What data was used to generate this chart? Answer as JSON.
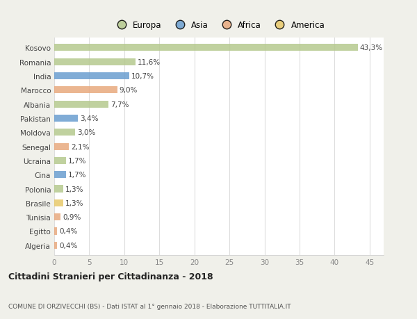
{
  "countries": [
    "Kosovo",
    "Romania",
    "India",
    "Marocco",
    "Albania",
    "Pakistan",
    "Moldova",
    "Senegal",
    "Ucraina",
    "Cina",
    "Polonia",
    "Brasile",
    "Tunisia",
    "Egitto",
    "Algeria"
  ],
  "values": [
    43.3,
    11.6,
    10.7,
    9.0,
    7.7,
    3.4,
    3.0,
    2.1,
    1.7,
    1.7,
    1.3,
    1.3,
    0.9,
    0.4,
    0.4
  ],
  "labels": [
    "43,3%",
    "11,6%",
    "10,7%",
    "9,0%",
    "7,7%",
    "3,4%",
    "3,0%",
    "2,1%",
    "1,7%",
    "1,7%",
    "1,3%",
    "1,3%",
    "0,9%",
    "0,4%",
    "0,4%"
  ],
  "colors": [
    "#b5c98e",
    "#b5c98e",
    "#6a9ecf",
    "#e8a97e",
    "#b5c98e",
    "#6a9ecf",
    "#b5c98e",
    "#e8a97e",
    "#b5c98e",
    "#6a9ecf",
    "#b5c98e",
    "#e8c96a",
    "#e8a97e",
    "#e8a97e",
    "#e8a97e"
  ],
  "legend": [
    {
      "label": "Europa",
      "color": "#b5c98e"
    },
    {
      "label": "Asia",
      "color": "#6a9ecf"
    },
    {
      "label": "Africa",
      "color": "#e8a97e"
    },
    {
      "label": "America",
      "color": "#e8c96a"
    }
  ],
  "xlim": [
    0,
    47
  ],
  "xticks": [
    0,
    5,
    10,
    15,
    20,
    25,
    30,
    35,
    40,
    45
  ],
  "title": "Cittadini Stranieri per Cittadinanza - 2018",
  "subtitle": "COMUNE DI ORZIVECCHI (BS) - Dati ISTAT al 1° gennaio 2018 - Elaborazione TUTTITALIA.IT",
  "outer_bg_color": "#f0f0ea",
  "plot_bg_color": "#ffffff",
  "bar_height": 0.5,
  "label_fontsize": 7.5,
  "tick_fontsize": 7.5,
  "ytick_fontsize": 7.5,
  "legend_fontsize": 8.5,
  "title_fontsize": 9,
  "subtitle_fontsize": 6.5
}
